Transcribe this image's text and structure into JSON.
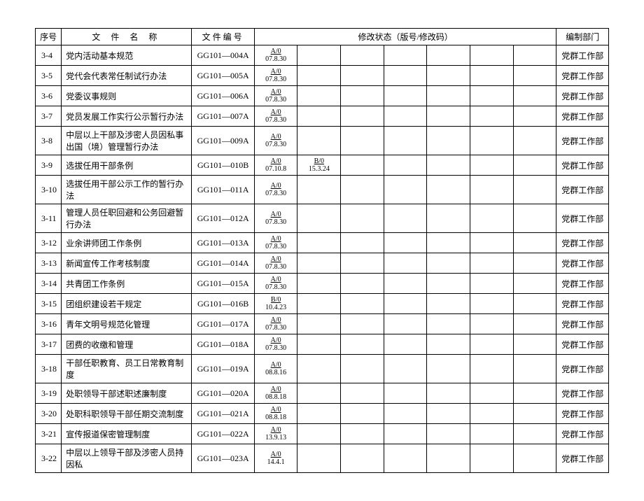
{
  "headers": {
    "seq": "序号",
    "name": "文 件 名 称",
    "code": "文件编号",
    "status": "修改状态（版号/修改码）",
    "dept": "编制部门"
  },
  "rows": [
    {
      "seq": "3-4",
      "name": "党内活动基本规范",
      "code": "GG101—004A",
      "revs": [
        "A/0|07.8.30"
      ],
      "dept": "党群工作部"
    },
    {
      "seq": "3-5",
      "name": "党代会代表常任制试行办法",
      "code": "GG101—005A",
      "revs": [
        "A/0|07.8.30"
      ],
      "dept": "党群工作部"
    },
    {
      "seq": "3-6",
      "name": "党委议事规则",
      "code": "GG101—006A",
      "revs": [
        "A/0|07.8.30"
      ],
      "dept": "党群工作部"
    },
    {
      "seq": "3-7",
      "name": "党员发展工作实行公示暂行办法",
      "code": "GG101—007A",
      "revs": [
        "A/0|07.8.30"
      ],
      "dept": "党群工作部"
    },
    {
      "seq": "3-8",
      "name": "中层以上干部及涉密人员因私事出国（境）管理暂行办法",
      "code": "GG101—009A",
      "revs": [
        "A/0|07.8.30"
      ],
      "dept": "党群工作部"
    },
    {
      "seq": "3-9",
      "name": "选拔任用干部条例",
      "code": "GG101—010B",
      "revs": [
        "A/0|07.10.8",
        "B/0|15.3.24"
      ],
      "dept": "党群工作部"
    },
    {
      "seq": "3-10",
      "name": "选拔任用干部公示工作的暂行办法",
      "code": "GG101—011A",
      "revs": [
        "A/0|07.8.30"
      ],
      "dept": "党群工作部"
    },
    {
      "seq": "3-11",
      "name": "管理人员任职回避和公务回避暂行办法",
      "code": "GG101—012A",
      "revs": [
        "A/0|07.8.30"
      ],
      "dept": "党群工作部"
    },
    {
      "seq": "3-12",
      "name": "业余讲师团工作条例",
      "code": "GG101—013A",
      "revs": [
        "A/0|07.8.30"
      ],
      "dept": "党群工作部"
    },
    {
      "seq": "3-13",
      "name": "新闻宣传工作考核制度",
      "code": "GG101—014A",
      "revs": [
        "A/0|07.8.30"
      ],
      "dept": "党群工作部"
    },
    {
      "seq": "3-14",
      "name": "共青团工作条例",
      "code": "GG101—015A",
      "revs": [
        "A/0|07.8.30"
      ],
      "dept": "党群工作部"
    },
    {
      "seq": "3-15",
      "name": "团组织建设若干规定",
      "code": "GG101—016B",
      "revs": [
        "B/0|10.4.23"
      ],
      "dept": "党群工作部"
    },
    {
      "seq": "3-16",
      "name": "青年文明号规范化管理",
      "code": "GG101—017A",
      "revs": [
        "A/0|07.8.30"
      ],
      "dept": "党群工作部"
    },
    {
      "seq": "3-17",
      "name": "团费的收缴和管理",
      "code": "GG101—018A",
      "revs": [
        "A/0|07.8.30"
      ],
      "dept": "党群工作部"
    },
    {
      "seq": "3-18",
      "name": "干部任职教育、员工日常教育制度",
      "code": "GG101—019A",
      "revs": [
        "A/0|08.8.16"
      ],
      "dept": "党群工作部"
    },
    {
      "seq": "3-19",
      "name": "处职领导干部述职述廉制度",
      "code": "GG101—020A",
      "revs": [
        "A/0|08.8.18"
      ],
      "dept": "党群工作部"
    },
    {
      "seq": "3-20",
      "name": "处职科职领导干部任期交流制度",
      "code": "GG101—021A",
      "revs": [
        "A/0|08.8.18"
      ],
      "dept": "党群工作部"
    },
    {
      "seq": "3-21",
      "name": "宣传报道保密管理制度",
      "code": "GG101—022A",
      "revs": [
        "A/0|13.9.13"
      ],
      "dept": "党群工作部"
    },
    {
      "seq": "3-22",
      "name": "中层以上领导干部及涉密人员持因私",
      "code": "GG101—023A",
      "revs": [
        "A/0|14.4.1"
      ],
      "dept": "党群工作部"
    }
  ],
  "rev_columns": 7
}
